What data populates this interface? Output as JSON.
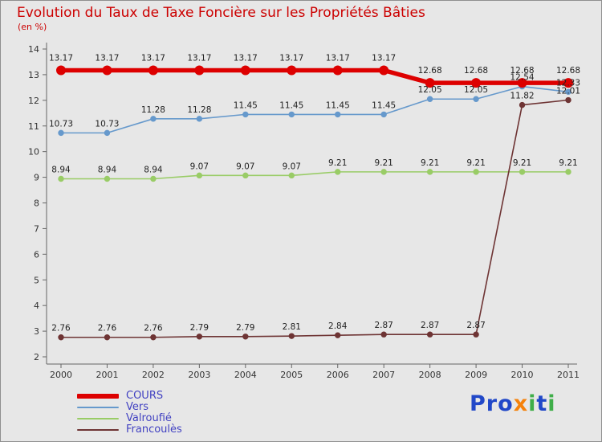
{
  "title": "Evolution du Taux de Taxe Foncière sur les Propriétés Bâties",
  "subtitle": "(en %)",
  "colors": {
    "title": "#cc0000",
    "axis": "#666666",
    "tick_text": "#333333",
    "point_label": "#222222",
    "legend_text": "#4242c2",
    "background": "#e7e7e7"
  },
  "chart_data": {
    "type": "line",
    "x": [
      "2000",
      "2001",
      "2002",
      "2003",
      "2004",
      "2005",
      "2006",
      "2007",
      "2008",
      "2009",
      "2010",
      "2011"
    ],
    "ylim": [
      2,
      14
    ],
    "yticks": [
      2,
      3,
      4,
      5,
      6,
      7,
      8,
      9,
      10,
      11,
      12,
      13,
      14
    ],
    "grid": false,
    "legend_position": "bottom-left",
    "point_labels": true,
    "series": [
      {
        "name": "COURS",
        "color": "#dd0000",
        "thick": true,
        "values": [
          13.17,
          13.17,
          13.17,
          13.17,
          13.17,
          13.17,
          13.17,
          13.17,
          12.68,
          12.68,
          12.68,
          12.68
        ]
      },
      {
        "name": "Vers",
        "color": "#6699cc",
        "thick": false,
        "values": [
          10.73,
          10.73,
          11.28,
          11.28,
          11.45,
          11.45,
          11.45,
          11.45,
          12.05,
          12.05,
          12.54,
          12.33
        ]
      },
      {
        "name": "Valroufié",
        "color": "#99cc66",
        "thick": false,
        "values": [
          8.94,
          8.94,
          8.94,
          9.07,
          9.07,
          9.07,
          9.21,
          9.21,
          9.21,
          9.21,
          9.21,
          9.21
        ]
      },
      {
        "name": "Francoulès",
        "color": "#6e3434",
        "thick": false,
        "values": [
          2.76,
          2.76,
          2.76,
          2.79,
          2.79,
          2.81,
          2.84,
          2.87,
          2.87,
          2.87,
          11.82,
          12.01
        ]
      }
    ]
  },
  "legend": {
    "items": [
      "COURS",
      "Vers",
      "Valroufié",
      "Francoulès"
    ]
  },
  "logo": {
    "text": "Proxiti",
    "letters": [
      {
        "ch": "P",
        "color": "#2148c8"
      },
      {
        "ch": "r",
        "color": "#2148c8"
      },
      {
        "ch": "o",
        "color": "#2148c8"
      },
      {
        "ch": "x",
        "color": "#f5820b"
      },
      {
        "ch": "i",
        "color": "#3fae49"
      },
      {
        "ch": "t",
        "color": "#2148c8"
      },
      {
        "ch": "i",
        "color": "#3fae49"
      }
    ]
  }
}
